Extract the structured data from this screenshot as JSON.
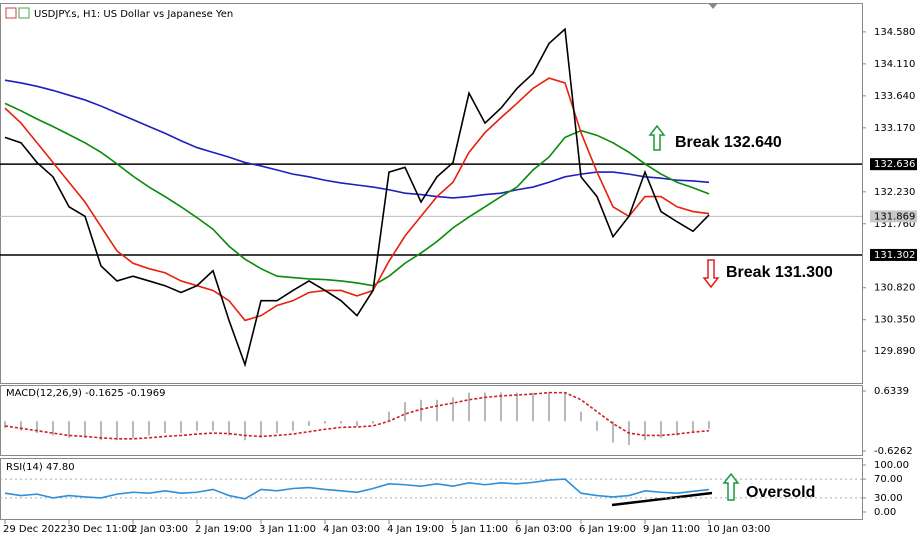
{
  "chart_data": [
    {
      "type": "line",
      "title": "USDJPY.s, H1:  US Dollar vs Japanese Yen",
      "ylim": [
        129.42,
        134.99
      ],
      "yticks": [
        {
          "value": 134.58,
          "label": "134.580"
        },
        {
          "value": 134.11,
          "label": "134.110"
        },
        {
          "value": 133.64,
          "label": "133.640"
        },
        {
          "value": 133.17,
          "label": "133.170"
        },
        {
          "value": 132.23,
          "label": "132.230"
        },
        {
          "value": 131.76,
          "label": "131.760"
        },
        {
          "value": 130.82,
          "label": "130.820"
        },
        {
          "value": 130.35,
          "label": "130.350"
        },
        {
          "value": 129.89,
          "label": "129.890"
        }
      ],
      "levels": [
        132.636,
        131.302
      ],
      "current": 131.869,
      "series": [
        {
          "color": "#1f1fc0",
          "values": [
            133.87,
            133.83,
            133.78,
            133.72,
            133.65,
            133.58,
            133.49,
            133.39,
            133.29,
            133.19,
            133.09,
            132.98,
            132.88,
            132.81,
            132.74,
            132.66,
            132.61,
            132.55,
            132.49,
            132.45,
            132.4,
            132.36,
            132.33,
            132.3,
            132.26,
            132.21,
            132.19,
            132.16,
            132.14,
            132.16,
            132.19,
            132.21,
            132.26,
            132.3,
            132.37,
            132.45,
            132.49,
            132.52,
            132.52,
            132.49,
            132.45,
            132.43,
            132.4,
            132.39,
            132.37
          ]
        },
        {
          "color": "#0a8a0a",
          "values": [
            133.53,
            133.42,
            133.3,
            133.19,
            133.07,
            132.95,
            132.81,
            132.64,
            132.46,
            132.3,
            132.16,
            132.01,
            131.85,
            131.68,
            131.43,
            131.24,
            131.1,
            130.99,
            130.97,
            130.95,
            130.94,
            130.92,
            130.89,
            130.85,
            130.99,
            131.18,
            131.33,
            131.5,
            131.7,
            131.86,
            132.01,
            132.16,
            132.3,
            132.55,
            132.74,
            133.03,
            133.13,
            133.06,
            132.95,
            132.81,
            132.64,
            132.49,
            132.37,
            132.29,
            132.2
          ]
        },
        {
          "color": "#e8200c",
          "values": [
            133.46,
            133.24,
            132.95,
            132.66,
            132.37,
            132.08,
            131.72,
            131.36,
            131.18,
            131.1,
            131.04,
            130.92,
            130.85,
            130.78,
            130.63,
            130.34,
            130.41,
            130.56,
            130.63,
            130.75,
            130.78,
            130.78,
            130.7,
            130.78,
            131.21,
            131.58,
            131.87,
            132.16,
            132.37,
            132.81,
            133.1,
            133.32,
            133.53,
            133.75,
            133.9,
            133.83,
            133.1,
            132.52,
            132.01,
            131.87,
            132.16,
            132.16,
            132.01,
            131.94,
            131.91
          ]
        },
        {
          "color": "#000000",
          "values": [
            133.03,
            132.95,
            132.66,
            132.45,
            132.01,
            131.87,
            131.14,
            130.92,
            130.99,
            130.92,
            130.85,
            130.75,
            130.85,
            131.07,
            130.34,
            129.69,
            130.63,
            130.63,
            130.78,
            130.92,
            130.78,
            130.63,
            130.41,
            130.78,
            132.52,
            132.59,
            132.08,
            132.45,
            132.66,
            133.68,
            133.24,
            133.46,
            133.75,
            133.97,
            134.41,
            134.62,
            132.45,
            132.16,
            131.57,
            131.87,
            132.52,
            131.94,
            131.79,
            131.65,
            131.89
          ]
        }
      ],
      "annotations": [
        {
          "text": "Break 132.640",
          "color": "#1a9a3a",
          "direction": "up"
        },
        {
          "text": "Break 131.300",
          "color": "#e02020",
          "direction": "down"
        }
      ]
    },
    {
      "type": "bar",
      "title": "MACD(12,26,9) -0.1625 -0.1969",
      "ylim": [
        -0.6262,
        0.6339
      ],
      "yticks": [
        -0.6262,
        0.6339
      ],
      "series": [
        {
          "type": "bar",
          "color": "#b8b8b8",
          "values": [
            -0.15,
            -0.2,
            -0.25,
            -0.3,
            -0.35,
            -0.35,
            -0.4,
            -0.4,
            -0.35,
            -0.3,
            -0.25,
            -0.25,
            -0.2,
            -0.2,
            -0.3,
            -0.4,
            -0.35,
            -0.25,
            -0.2,
            -0.1,
            -0.05,
            -0.05,
            -0.1,
            -0.05,
            0.2,
            0.4,
            0.45,
            0.45,
            0.5,
            0.6,
            0.6,
            0.6,
            0.6,
            0.6,
            0.62,
            0.6,
            0.2,
            -0.2,
            -0.45,
            -0.5,
            -0.4,
            -0.35,
            -0.3,
            -0.25,
            -0.16
          ]
        },
        {
          "type": "line",
          "dashed": true,
          "color": "#d02020",
          "values": [
            -0.1,
            -0.15,
            -0.2,
            -0.25,
            -0.3,
            -0.32,
            -0.35,
            -0.37,
            -0.37,
            -0.35,
            -0.32,
            -0.3,
            -0.27,
            -0.25,
            -0.26,
            -0.3,
            -0.32,
            -0.3,
            -0.27,
            -0.22,
            -0.17,
            -0.13,
            -0.12,
            -0.1,
            0.0,
            0.15,
            0.25,
            0.32,
            0.38,
            0.45,
            0.5,
            0.53,
            0.55,
            0.57,
            0.6,
            0.6,
            0.45,
            0.2,
            -0.05,
            -0.25,
            -0.3,
            -0.3,
            -0.27,
            -0.23,
            -0.2
          ]
        }
      ]
    },
    {
      "type": "line",
      "title": "RSI(14) 47.80",
      "ylim": [
        0,
        100
      ],
      "yticks": [
        {
          "value": 100,
          "label": "100.00"
        },
        {
          "value": 70,
          "label": "70.00"
        },
        {
          "value": 30,
          "label": "30.00"
        },
        {
          "value": 0,
          "label": "0.00"
        }
      ],
      "grid": [
        70,
        30
      ],
      "categories": [
        "29 Dec 2022",
        null,
        null,
        null,
        "30 Dec 11:00",
        null,
        null,
        null,
        "2 Jan 03:00",
        null,
        null,
        null,
        "2 Jan 19:00",
        null,
        null,
        null,
        "3 Jan 11:00",
        null,
        null,
        null,
        "4 Jan 03:00",
        null,
        null,
        null,
        "4 Jan 19:00",
        null,
        null,
        null,
        "5 Jan 11:00",
        null,
        null,
        null,
        "6 Jan 03:00",
        null,
        null,
        null,
        "6 Jan 19:00",
        null,
        null,
        null,
        "9 Jan 11:00",
        null,
        null,
        null,
        "10 Jan 03:00"
      ],
      "series": [
        {
          "color": "#2f8fd8",
          "values": [
            40,
            35,
            38,
            30,
            35,
            32,
            30,
            38,
            42,
            40,
            45,
            40,
            42,
            48,
            35,
            28,
            48,
            45,
            50,
            52,
            48,
            45,
            42,
            50,
            60,
            58,
            55,
            60,
            55,
            62,
            58,
            62,
            60,
            63,
            68,
            70,
            40,
            35,
            32,
            35,
            45,
            42,
            40,
            44,
            47.8
          ]
        }
      ],
      "annotations": [
        {
          "text": "Oversold",
          "color": "#1a9a3a",
          "direction": "up"
        }
      ]
    }
  ]
}
